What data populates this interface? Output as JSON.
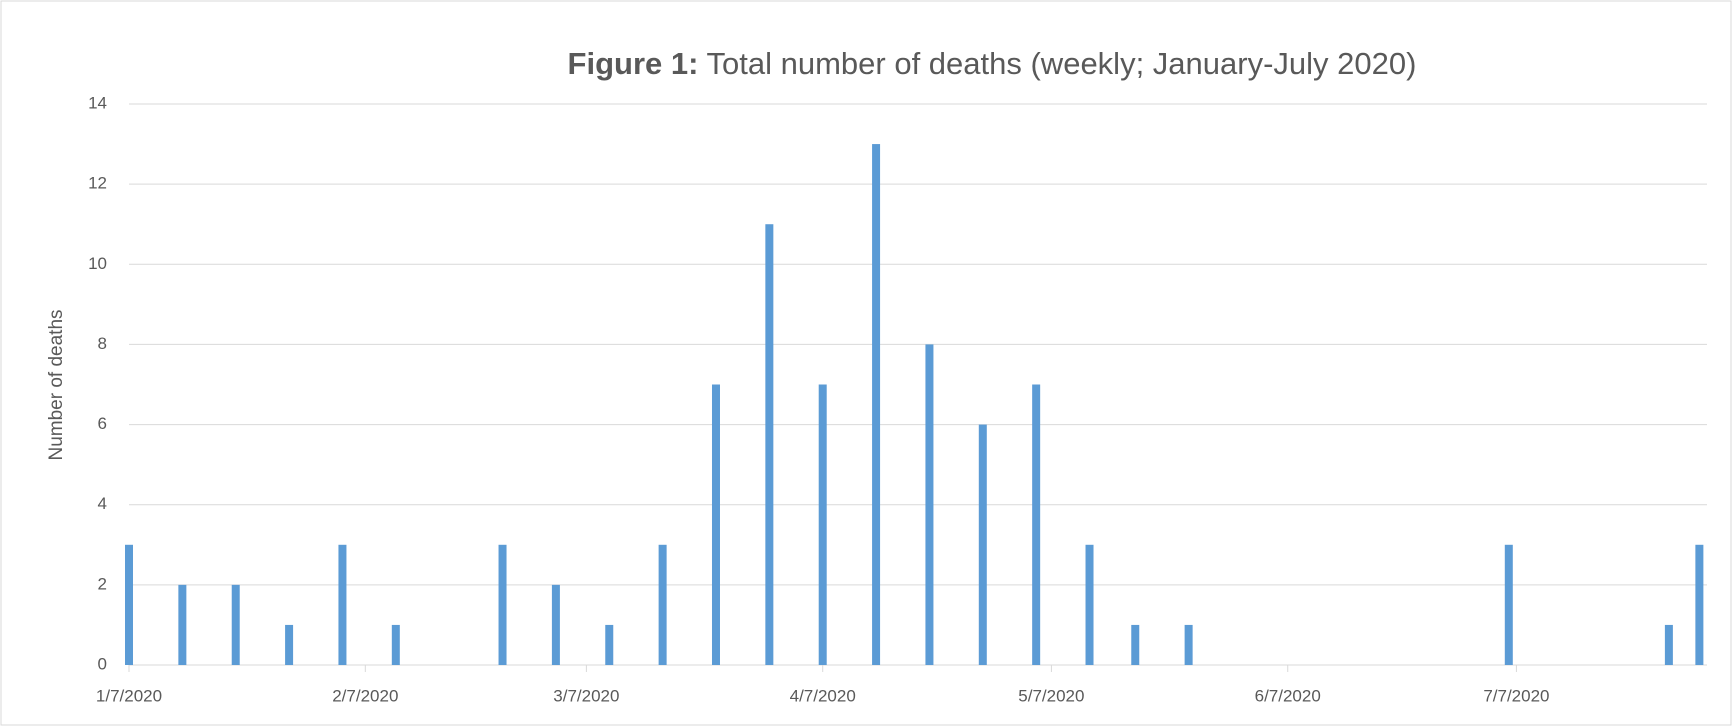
{
  "chart_data": {
    "type": "bar",
    "title_prefix": "Figure 1:",
    "title": "Total number of deaths (weekly; January-July 2020)",
    "y_label": "Number of deaths",
    "x": [
      "1/7/2020",
      "1/14/2020",
      "1/21/2020",
      "1/28/2020",
      "2/4/2020",
      "2/11/2020",
      "2/25/2020",
      "3/3/2020",
      "3/10/2020",
      "3/17/2020",
      "3/24/2020",
      "3/31/2020",
      "4/7/2020",
      "4/14/2020",
      "4/21/2020",
      "4/28/2020",
      "5/5/2020",
      "5/12/2020",
      "5/18/2020",
      "5/25/2020",
      "7/6/2020",
      "7/27/2020",
      "7/31/2020"
    ],
    "values": [
      3,
      2,
      2,
      1,
      3,
      1,
      3,
      2,
      1,
      3,
      7,
      11,
      7,
      13,
      8,
      6,
      7,
      3,
      1,
      1,
      3,
      1,
      3
    ],
    "color": "#5b9bd5",
    "xlim": [
      "1/7/2020",
      "8/1/2020"
    ],
    "xticks": [
      "1/7/2020",
      "2/7/2020",
      "3/7/2020",
      "4/7/2020",
      "5/7/2020",
      "6/7/2020",
      "7/7/2020"
    ],
    "ylim": [
      0,
      14
    ],
    "yticks": [
      0,
      2,
      4,
      6,
      8,
      10,
      12,
      14
    ],
    "grid": true
  }
}
